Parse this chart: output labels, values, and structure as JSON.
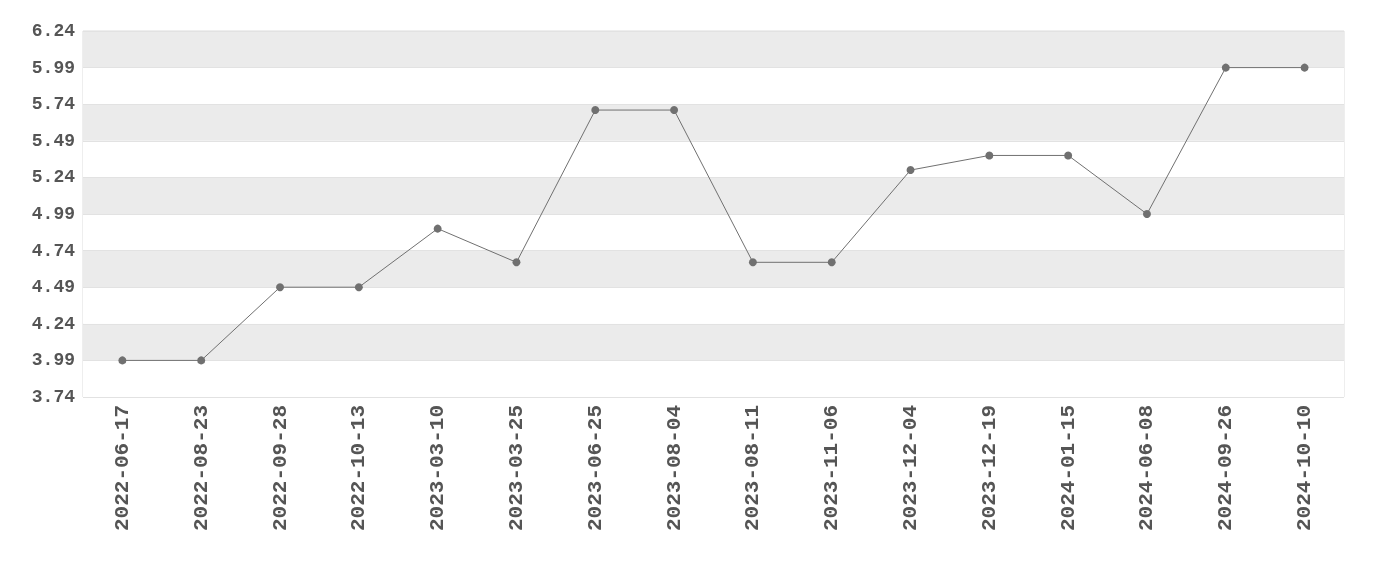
{
  "chart_data": {
    "type": "line",
    "categories": [
      "2022-06-17",
      "2022-08-23",
      "2022-09-28",
      "2022-10-13",
      "2023-03-10",
      "2023-03-25",
      "2023-06-25",
      "2023-08-04",
      "2023-08-11",
      "2023-11-06",
      "2023-12-04",
      "2023-12-19",
      "2024-01-15",
      "2024-06-08",
      "2024-09-26",
      "2024-10-10"
    ],
    "series": [
      {
        "color": "#707070",
        "values": [
          3.99,
          3.99,
          4.49,
          4.49,
          4.89,
          4.66,
          5.7,
          5.7,
          4.66,
          4.66,
          5.29,
          5.39,
          5.39,
          4.99,
          5.99,
          5.99
        ]
      }
    ],
    "ylim": [
      3.74,
      6.24
    ],
    "yticks": [
      3.74,
      3.99,
      4.24,
      4.49,
      4.74,
      4.99,
      5.24,
      5.49,
      5.74,
      5.99,
      6.24
    ],
    "grid": true,
    "marker": "circle",
    "line_style": "solid"
  }
}
